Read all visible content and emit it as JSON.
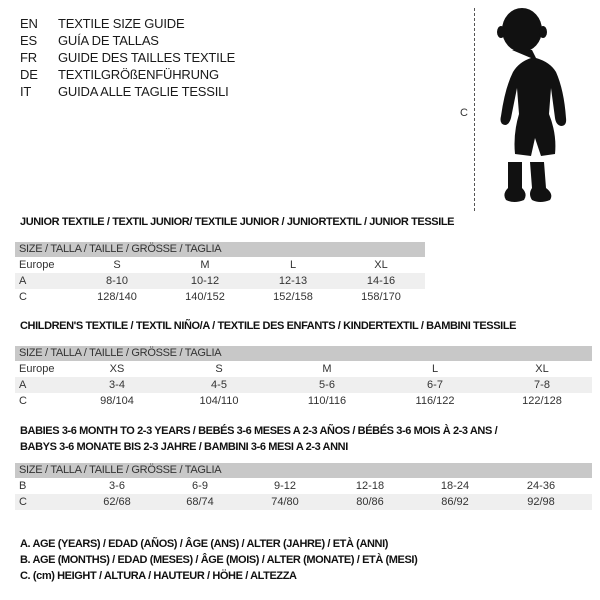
{
  "languages": [
    {
      "code": "EN",
      "name": "TEXTILE SIZE GUIDE"
    },
    {
      "code": "ES",
      "name": "GUÍA DE TALLAS"
    },
    {
      "code": "FR",
      "name": "GUIDE DES TAILLES TEXTILE"
    },
    {
      "code": "DE",
      "name": "TEXTILGRÖßENFÜHRUNG"
    },
    {
      "code": "IT",
      "name": "GUIDA ALLE TAGLIE TESSILI"
    }
  ],
  "figure": {
    "height_label": "C",
    "icon": "baby-silhouette"
  },
  "tables": [
    {
      "title": [
        "JUNIOR TEXTILE / TEXTIL JUNIOR/ TEXTILE JUNIOR / JUNIORTEXTIL / JUNIOR TESSILE"
      ],
      "header": "SIZE / TALLA / TAILLE / GRÖSSE / TAGLIA",
      "rows": [
        {
          "label": "Europe",
          "cells": [
            "S",
            "M",
            "L",
            "XL"
          ]
        },
        {
          "label": "A",
          "cells": [
            "8-10",
            "10-12",
            "12-13",
            "14-16"
          ]
        },
        {
          "label": "C",
          "cells": [
            "128/140",
            "140/152",
            "152/158",
            "158/170"
          ]
        }
      ]
    },
    {
      "title": [
        "CHILDREN'S TEXTILE / TEXTIL NIÑO/A / TEXTILE DES ENFANTS / KINDERTEXTIL / BAMBINI TESSILE"
      ],
      "header": "SIZE / TALLA / TAILLE / GRÖSSE / TAGLIA",
      "rows": [
        {
          "label": "Europe",
          "cells": [
            "XS",
            "S",
            "M",
            "L",
            "XL"
          ]
        },
        {
          "label": "A",
          "cells": [
            "3-4",
            "4-5",
            "5-6",
            "6-7",
            "7-8"
          ]
        },
        {
          "label": "C",
          "cells": [
            "98/104",
            "104/110",
            "110/116",
            "116/122",
            "122/128"
          ]
        }
      ]
    },
    {
      "title": [
        "BABIES 3-6 MONTH TO 2-3 YEARS / BEBÉS 3-6 MESES A 2-3 AÑOS / BÉBÉS 3-6 MOIS À 2-3 ANS /",
        "BABYS 3-6 MONATE BIS 2-3 JAHRE / BAMBINI 3-6 MESI A 2-3 ANNI"
      ],
      "header": "SIZE / TALLA / TAILLE / GRÖSSE / TAGLIA",
      "rows": [
        {
          "label": "B",
          "cells": [
            "3-6",
            "6-9",
            "9-12",
            "12-18",
            "18-24",
            "24-36"
          ]
        },
        {
          "label": "C",
          "cells": [
            "62/68",
            "68/74",
            "74/80",
            "80/86",
            "86/92",
            "92/98"
          ]
        }
      ]
    }
  ],
  "notes": [
    "A. AGE (YEARS) / EDAD (AÑOS) / ÂGE (ANS) / ALTER (JAHRE) / ETÀ (ANNI)",
    "B. AGE (MONTHS) / EDAD (MESES) / ÂGE (MOIS) / ALTER (MONATE) / ETÀ (MESI)",
    "C. (cm) HEIGHT / ALTURA / HAUTEUR / HÖHE / ALTEZZA"
  ]
}
